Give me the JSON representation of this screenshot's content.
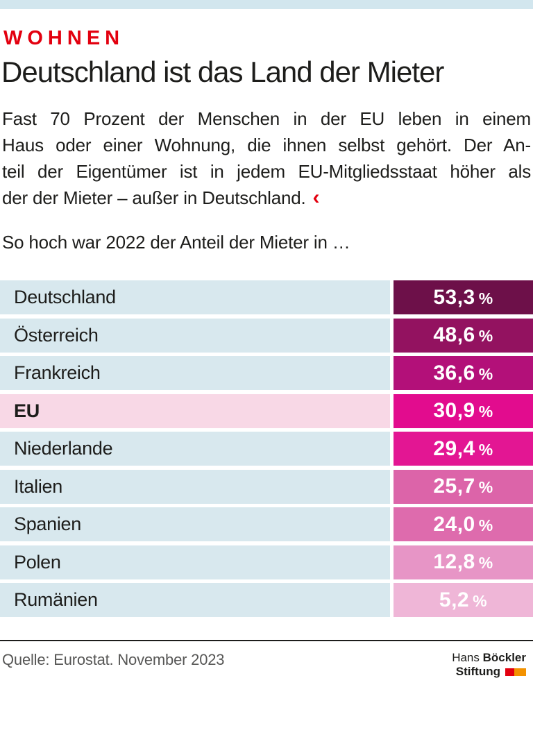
{
  "meta": {
    "topbar_color": "#d2e6ee",
    "accent_red": "#e3000f",
    "label_bg_default": "#d8e8ee",
    "label_bg_highlight": "#f8d8e6"
  },
  "header": {
    "kicker": "WOHNEN",
    "title": "Deutschland ist das Land der Mieter"
  },
  "intro": {
    "lines": [
      "Fast 70 Prozent der Menschen in der EU leben in einem",
      "Haus oder einer Wohnung, die ihnen selbst gehört. Der An-",
      "teil der Eigentümer ist in jedem EU-Mitgliedsstaat höher als",
      "der der Mieter – außer in Deutschland."
    ],
    "end_mark": "‹"
  },
  "subtitle": "So hoch war 2022 der Anteil der Mieter in …",
  "table": {
    "percent_suffix": "%",
    "rows": [
      {
        "label": "Deutschland",
        "value": "53,3",
        "color": "#6d1049",
        "label_bg": "#d8e8ee"
      },
      {
        "label": "Österreich",
        "value": "48,6",
        "color": "#931260",
        "label_bg": "#d8e8ee"
      },
      {
        "label": "Frankreich",
        "value": "36,6",
        "color": "#b31079",
        "label_bg": "#d8e8ee"
      },
      {
        "label": "EU",
        "value": "30,9",
        "color": "#e20c8e",
        "label_bg": "#f8d8e6"
      },
      {
        "label": "Niederlande",
        "value": "29,4",
        "color": "#e31693",
        "label_bg": "#d8e8ee"
      },
      {
        "label": "Italien",
        "value": "25,7",
        "color": "#dc64a9",
        "label_bg": "#d8e8ee"
      },
      {
        "label": "Spanien",
        "value": "24,0",
        "color": "#de6bad",
        "label_bg": "#d8e8ee"
      },
      {
        "label": "Polen",
        "value": "12,8",
        "color": "#e795c6",
        "label_bg": "#d8e8ee"
      },
      {
        "label": "Rumänien",
        "value": "5,2",
        "color": "#efb6d7",
        "label_bg": "#d8e8ee"
      }
    ]
  },
  "footer": {
    "source": "Quelle: Eurostat. November 2023",
    "logo": {
      "name_regular": "Hans",
      "name_bold": "Böckler",
      "line2": "Stiftung",
      "red": "#e3000f",
      "orange": "#f39200"
    }
  },
  "chart_data": {
    "type": "bar",
    "title": "So hoch war 2022 der Anteil der Mieter in …",
    "categories": [
      "Deutschland",
      "Österreich",
      "Frankreich",
      "EU",
      "Niederlande",
      "Italien",
      "Spanien",
      "Polen",
      "Rumänien"
    ],
    "values": [
      53.3,
      48.6,
      36.6,
      30.9,
      29.4,
      25.7,
      24.0,
      12.8,
      5.2
    ],
    "value_labels": [
      "53,3 %",
      "48,6 %",
      "36,6 %",
      "30,9 %",
      "29,4 %",
      "25,7 %",
      "24,0 %",
      "12,8 %",
      "5,2 %"
    ],
    "unit": "%",
    "xlabel": "",
    "ylabel": "Anteil der Mieter",
    "legend": "none",
    "layout_hint": "uniform-width value chips, color intensity encodes value (dark wine = high, pale pink = low); highlighted row: EU"
  }
}
